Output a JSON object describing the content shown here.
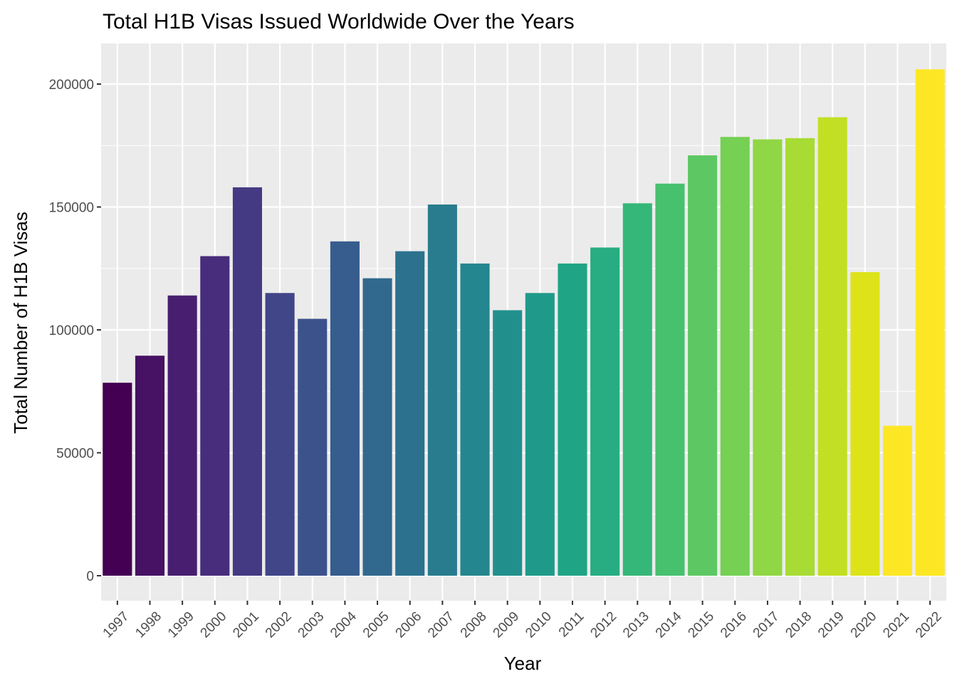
{
  "chart_data": {
    "type": "bar",
    "title": "Total H1B Visas Issued Worldwide Over the Years",
    "xlabel": "Year",
    "ylabel": "Total Number of H1B Visas",
    "categories": [
      "1997",
      "1998",
      "1999",
      "2000",
      "2001",
      "2002",
      "2003",
      "2004",
      "2005",
      "2006",
      "2007",
      "2008",
      "2009",
      "2010",
      "2011",
      "2012",
      "2013",
      "2014",
      "2015",
      "2016",
      "2017",
      "2018",
      "2019",
      "2020",
      "2021",
      "2022"
    ],
    "values": [
      78500,
      89500,
      114000,
      130000,
      158000,
      115000,
      104500,
      136000,
      121000,
      132000,
      151000,
      127000,
      108000,
      115000,
      127000,
      133500,
      151500,
      159500,
      171000,
      178500,
      177500,
      178000,
      186500,
      123500,
      61000,
      206000
    ],
    "colors": [
      "#440154",
      "#471164",
      "#481f70",
      "#472d7b",
      "#443a83",
      "#404688",
      "#3b528b",
      "#365d8d",
      "#31688e",
      "#2c728e",
      "#287c8e",
      "#24868e",
      "#21908d",
      "#1f9a8a",
      "#20a486",
      "#27ad81",
      "#35b779",
      "#47c16e",
      "#5dc863",
      "#75d054",
      "#8fd744",
      "#a8db34",
      "#c2df23",
      "#dde318",
      "#fde725",
      "#fde725"
    ],
    "yticks": [
      "0",
      "50000",
      "100000",
      "150000",
      "200000"
    ],
    "ytick_values": [
      0,
      50000,
      100000,
      150000,
      200000
    ],
    "ylim": [
      0,
      216000
    ],
    "grid": true,
    "panel_background": "#ebebeb",
    "gridline_color": "#ffffff",
    "legend": "none"
  }
}
